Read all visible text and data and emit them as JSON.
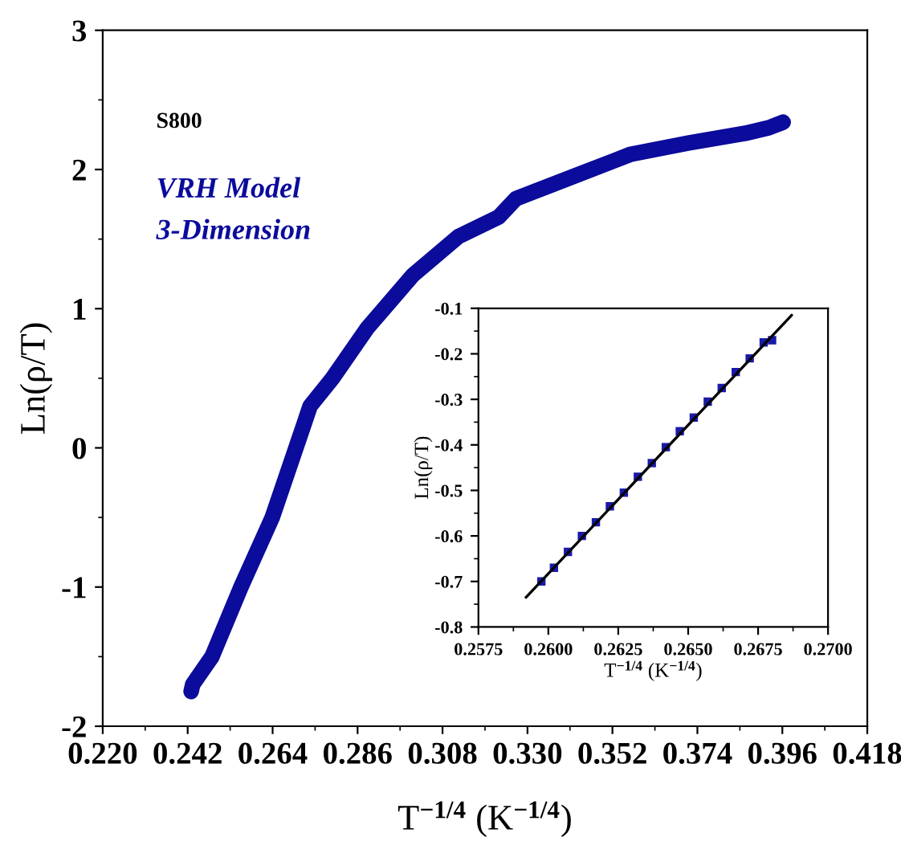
{
  "chart_data": [
    {
      "type": "line",
      "xlabel": "T$^{−1/4}$ (K$^{−1/4}$)",
      "ylabel": "Ln(ρ/T)",
      "annotations": [
        "S800",
        "VRH Model",
        "3-Dimension"
      ],
      "grid": false,
      "legend": false,
      "xlim": [
        0.22,
        0.418
      ],
      "xticks": [
        {
          "value": 0.22,
          "label": "0.220"
        },
        {
          "value": 0.242,
          "label": "0.242"
        },
        {
          "value": 0.264,
          "label": "0.264"
        },
        {
          "value": 0.286,
          "label": "0.286"
        },
        {
          "value": 0.308,
          "label": "0.308"
        },
        {
          "value": 0.33,
          "label": "0.330"
        },
        {
          "value": 0.352,
          "label": "0.352"
        },
        {
          "value": 0.374,
          "label": "0.374"
        },
        {
          "value": 0.396,
          "label": "0.396"
        },
        {
          "value": 0.418,
          "label": "0.418"
        }
      ],
      "ylim": [
        -2,
        3
      ],
      "yticks": [
        -2,
        -1,
        0,
        1,
        2,
        3
      ],
      "series": [
        {
          "color": "#0b0b9c",
          "x": [
            0.2429,
            0.2433,
            0.2483,
            0.2558,
            0.2639,
            0.272,
            0.2737,
            0.2795,
            0.2885,
            0.3003,
            0.3122,
            0.3226,
            0.327,
            0.3419,
            0.3568,
            0.3717,
            0.3864,
            0.3925,
            0.3962
          ],
          "values": [
            -1.75,
            -1.7,
            -1.5,
            -1.0,
            -0.5,
            0.16,
            0.3,
            0.5,
            0.86,
            1.24,
            1.52,
            1.66,
            1.79,
            1.95,
            2.11,
            2.19,
            2.26,
            2.3,
            2.34
          ]
        }
      ]
    },
    {
      "type": "scatter",
      "xlabel": "T$^{−1/4}$ (K$^{−1/4}$)",
      "ylabel": "Ln(ρ/T)",
      "grid": false,
      "legend": false,
      "xlim": [
        0.2575,
        0.27
      ],
      "xticks": [
        {
          "value": 0.2575,
          "label": "0.2575"
        },
        {
          "value": 0.26,
          "label": "0.2600"
        },
        {
          "value": 0.2625,
          "label": "0.2625"
        },
        {
          "value": 0.265,
          "label": "0.2650"
        },
        {
          "value": 0.2675,
          "label": "0.2675"
        },
        {
          "value": 0.27,
          "label": "0.2700"
        }
      ],
      "ylim": [
        -0.8,
        -0.1
      ],
      "yticks": [
        -0.8,
        -0.7,
        -0.6,
        -0.5,
        -0.4,
        -0.3,
        -0.2,
        -0.1
      ],
      "series": [
        {
          "color": "#1a1aa8",
          "marker": "square",
          "x": [
            0.25975,
            0.2602,
            0.2607,
            0.2612,
            0.2617,
            0.2622,
            0.2627,
            0.2632,
            0.2637,
            0.2642,
            0.2647,
            0.2652,
            0.2657,
            0.2662,
            0.2667,
            0.2672,
            0.2677,
            0.268
          ],
          "values": [
            -0.7,
            -0.67,
            -0.635,
            -0.6,
            -0.57,
            -0.535,
            -0.505,
            -0.47,
            -0.44,
            -0.405,
            -0.37,
            -0.34,
            -0.305,
            -0.275,
            -0.24,
            -0.21,
            -0.175,
            -0.17
          ]
        },
        {
          "type": "line",
          "color": "#000000",
          "x": [
            0.2592,
            0.2687
          ],
          "values": [
            -0.735,
            -0.115
          ]
        }
      ]
    }
  ]
}
